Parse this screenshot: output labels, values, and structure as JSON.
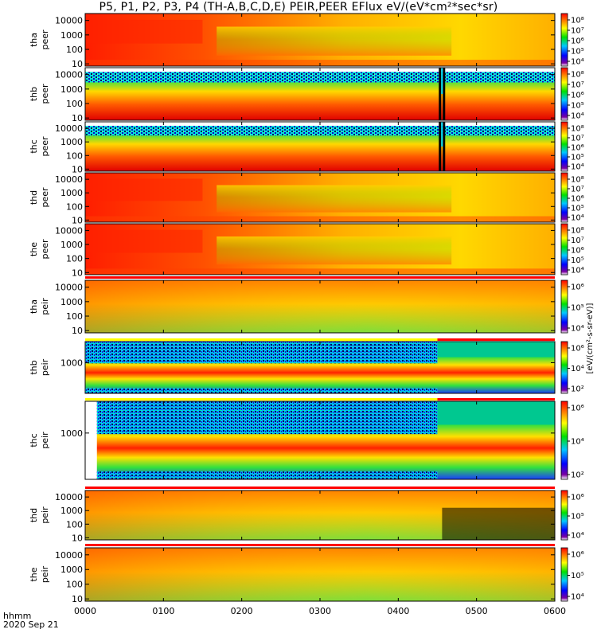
{
  "title": "P5, P1, P2, P3, P4 (TH-A,B,C,D,E) PEIR,PEER EFlux eV/(eV*cm²*sec*sr)",
  "x_axis": {
    "caption_line1": "hhmm",
    "caption_line2": "2020 Sep 21",
    "tick_labels": [
      "0000",
      "0100",
      "0200",
      "0300",
      "0400",
      "0500",
      "0600"
    ]
  },
  "colorbar_unit": "[eV/(cm²-s-sr-eV)]",
  "colors": {
    "background_high": "#ff3c00",
    "background_mid": "#ffcc00",
    "background_low": "#66e066",
    "gap_red": "#ff0000",
    "gap_yellow": "#ffff00"
  },
  "chart_data": [
    {
      "type": "heatmap",
      "probe": "tha",
      "species": "peer",
      "ylabel": [
        "tha",
        "peer"
      ],
      "yscale": "log",
      "ylim": [
        7,
        30000
      ],
      "yticks": [
        "10",
        "100",
        "1000",
        "10000"
      ],
      "color_ticks": [
        "10⁴",
        "10⁵",
        "10⁶",
        "10⁷",
        "10⁸"
      ],
      "x_range": [
        "0000",
        "0600"
      ]
    },
    {
      "type": "heatmap",
      "probe": "thb",
      "species": "peer",
      "ylabel": [
        "thb",
        "peer"
      ],
      "yscale": "log",
      "ylim": [
        7,
        30000
      ],
      "yticks": [
        "10",
        "100",
        "1000",
        "10000"
      ],
      "color_ticks": [
        "10⁴",
        "10⁵",
        "10⁶",
        "10⁷",
        "10⁸"
      ],
      "x_range": [
        "0000",
        "0600"
      ]
    },
    {
      "type": "heatmap",
      "probe": "thc",
      "species": "peer",
      "ylabel": [
        "thc",
        "peer"
      ],
      "yscale": "log",
      "ylim": [
        7,
        30000
      ],
      "yticks": [
        "10",
        "100",
        "1000",
        "10000"
      ],
      "color_ticks": [
        "10⁴",
        "10⁵",
        "10⁶",
        "10⁷",
        "10⁸"
      ],
      "x_range": [
        "0000",
        "0600"
      ]
    },
    {
      "type": "heatmap",
      "probe": "thd",
      "species": "peer",
      "ylabel": [
        "thd",
        "peer"
      ],
      "yscale": "log",
      "ylim": [
        7,
        30000
      ],
      "yticks": [
        "10",
        "100",
        "1000",
        "10000"
      ],
      "color_ticks": [
        "10⁴",
        "10⁵",
        "10⁶",
        "10⁷",
        "10⁸"
      ],
      "x_range": [
        "0000",
        "0600"
      ]
    },
    {
      "type": "heatmap",
      "probe": "the",
      "species": "peer",
      "ylabel": [
        "the",
        "peer"
      ],
      "yscale": "log",
      "ylim": [
        7,
        30000
      ],
      "yticks": [
        "10",
        "100",
        "1000",
        "10000"
      ],
      "color_ticks": [
        "10⁴",
        "10⁵",
        "10⁶",
        "10⁷",
        "10⁸"
      ],
      "x_range": [
        "0000",
        "0600"
      ]
    },
    {
      "type": "heatmap",
      "probe": "tha",
      "species": "peir",
      "ylabel": [
        "tha",
        "peir"
      ],
      "yscale": "log",
      "ylim": [
        7,
        30000
      ],
      "yticks": [
        "10",
        "100",
        "1000",
        "10000"
      ],
      "color_ticks": [
        "10⁴",
        "10⁵",
        "10⁶"
      ],
      "x_range": [
        "0000",
        "0600"
      ]
    },
    {
      "type": "heatmap",
      "probe": "thb",
      "species": "peir",
      "ylabel": [
        "thb",
        "peir"
      ],
      "yscale": "log",
      "ylim": [
        7,
        30000
      ],
      "yticks": [
        "1000"
      ],
      "color_ticks": [
        "10²",
        "10⁴",
        "10⁶"
      ],
      "x_range": [
        "0000",
        "0600"
      ]
    },
    {
      "type": "heatmap",
      "probe": "thc",
      "species": "peir",
      "ylabel": [
        "thc",
        "peir"
      ],
      "yscale": "log",
      "ylim": [
        7,
        30000
      ],
      "yticks": [
        "1000"
      ],
      "color_ticks": [
        "10²",
        "10⁴",
        "10⁶"
      ],
      "x_range": [
        "0000",
        "0600"
      ]
    },
    {
      "type": "heatmap",
      "probe": "thd",
      "species": "peir",
      "ylabel": [
        "thd",
        "peir"
      ],
      "yscale": "log",
      "ylim": [
        7,
        30000
      ],
      "yticks": [
        "10",
        "100",
        "1000",
        "10000"
      ],
      "color_ticks": [
        "10⁴",
        "10⁵",
        "10⁶"
      ],
      "x_range": [
        "0000",
        "0600"
      ]
    },
    {
      "type": "heatmap",
      "probe": "the",
      "species": "peir",
      "ylabel": [
        "the",
        "peir"
      ],
      "yscale": "log",
      "ylim": [
        7,
        30000
      ],
      "yticks": [
        "10",
        "100",
        "1000",
        "10000"
      ],
      "color_ticks": [
        "10⁴",
        "10⁵",
        "10⁶"
      ],
      "x_range": [
        "0000",
        "0600"
      ]
    }
  ]
}
